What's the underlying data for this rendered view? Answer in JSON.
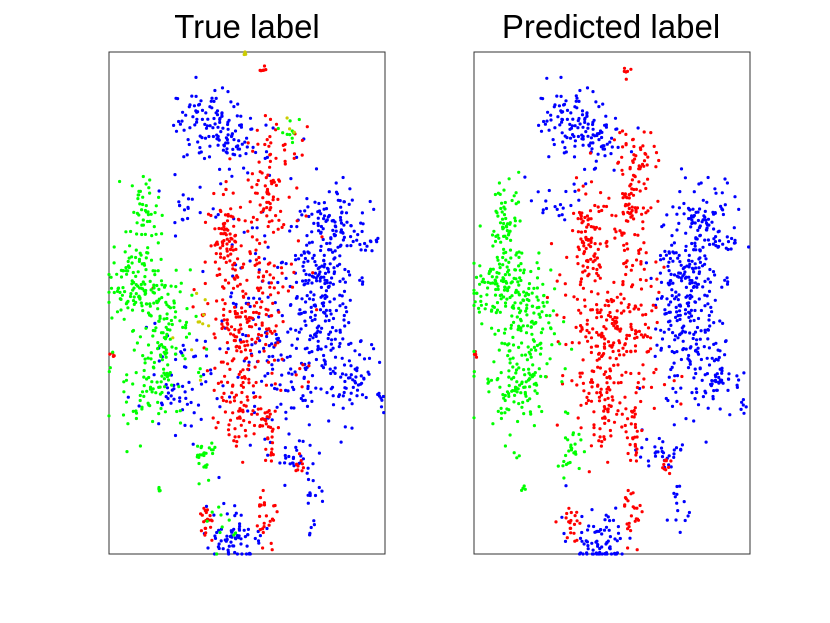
{
  "colors": {
    "class_blue": "#0000ff",
    "class_red": "#ff0000",
    "class_green": "#00ff00",
    "class_yellow": "#cccc00",
    "frame": "#333333",
    "text": "#000000"
  },
  "chart_data": [
    {
      "type": "scatter",
      "title": "True label",
      "xlabel": "",
      "ylabel": "",
      "axes_ticks": false,
      "grid": false,
      "legend": "none",
      "xlim": [
        0,
        1
      ],
      "ylim": [
        0,
        1
      ],
      "series": [
        {
          "color": "#0000ff",
          "clusters": [
            [
              0.35,
              0.86,
              0.07,
              0.03,
              90
            ],
            [
              0.45,
              0.82,
              0.05,
              0.03,
              40
            ],
            [
              0.78,
              0.5,
              0.06,
              0.1,
              260
            ],
            [
              0.82,
              0.67,
              0.05,
              0.03,
              60
            ],
            [
              0.92,
              0.62,
              0.03,
              0.01,
              15
            ],
            [
              0.88,
              0.34,
              0.04,
              0.03,
              50
            ],
            [
              0.45,
              0.03,
              0.05,
              0.03,
              70
            ],
            [
              0.67,
              0.2,
              0.04,
              0.02,
              30
            ],
            [
              0.6,
              0.38,
              0.08,
              0.08,
              80
            ],
            [
              0.25,
              0.35,
              0.06,
              0.06,
              60
            ],
            [
              0.98,
              0.3,
              0.01,
              0.01,
              6
            ],
            [
              0.55,
              0.55,
              0.1,
              0.15,
              80
            ],
            [
              0.75,
              0.1,
              0.02,
              0.03,
              15
            ],
            [
              0.28,
              0.7,
              0.05,
              0.03,
              20
            ]
          ]
        },
        {
          "color": "#ff0000",
          "clusters": [
            [
              0.57,
              0.73,
              0.03,
              0.06,
              70
            ],
            [
              0.42,
              0.64,
              0.03,
              0.05,
              60
            ],
            [
              0.5,
              0.47,
              0.08,
              0.08,
              150
            ],
            [
              0.47,
              0.32,
              0.04,
              0.06,
              70
            ],
            [
              0.58,
              0.25,
              0.02,
              0.03,
              30
            ],
            [
              0.35,
              0.06,
              0.02,
              0.02,
              20
            ],
            [
              0.57,
              0.08,
              0.02,
              0.03,
              25
            ],
            [
              0.7,
              0.18,
              0.01,
              0.01,
              10
            ],
            [
              0.55,
              0.55,
              0.12,
              0.15,
              90
            ],
            [
              0.66,
              0.8,
              0.02,
              0.02,
              10
            ],
            [
              0.55,
              0.96,
              0.01,
              0.01,
              6
            ],
            [
              0.01,
              0.4,
              0.005,
              0.005,
              4
            ]
          ]
        },
        {
          "color": "#00ff00",
          "clusters": [
            [
              0.12,
              0.66,
              0.03,
              0.05,
              60
            ],
            [
              0.08,
              0.53,
              0.05,
              0.03,
              80
            ],
            [
              0.18,
              0.52,
              0.05,
              0.04,
              40
            ],
            [
              0.15,
              0.35,
              0.07,
              0.06,
              110
            ],
            [
              0.35,
              0.2,
              0.02,
              0.02,
              25
            ],
            [
              0.22,
              0.46,
              0.04,
              0.04,
              40
            ],
            [
              0.18,
              0.13,
              0.005,
              0.005,
              4
            ],
            [
              0.66,
              0.84,
              0.02,
              0.02,
              10
            ],
            [
              0.42,
              0.05,
              0.03,
              0.02,
              10
            ]
          ]
        },
        {
          "color": "#cccc00",
          "clusters": [
            [
              0.49,
              0.995,
              0.005,
              0.003,
              4
            ],
            [
              0.3,
              0.44,
              0.04,
              0.04,
              10
            ],
            [
              0.66,
              0.84,
              0.01,
              0.01,
              3
            ]
          ]
        }
      ]
    },
    {
      "type": "scatter",
      "title": "Predicted label",
      "xlabel": "",
      "ylabel": "",
      "axes_ticks": false,
      "grid": false,
      "legend": "none",
      "xlim": [
        0,
        1
      ],
      "ylim": [
        0,
        1
      ],
      "series": [
        {
          "color": "#0000ff",
          "clusters": [
            [
              0.35,
              0.86,
              0.07,
              0.03,
              100
            ],
            [
              0.45,
              0.82,
              0.05,
              0.03,
              40
            ],
            [
              0.78,
              0.5,
              0.06,
              0.1,
              300
            ],
            [
              0.82,
              0.67,
              0.05,
              0.03,
              60
            ],
            [
              0.92,
              0.62,
              0.03,
              0.01,
              15
            ],
            [
              0.88,
              0.34,
              0.04,
              0.03,
              50
            ],
            [
              0.45,
              0.03,
              0.05,
              0.03,
              80
            ],
            [
              0.67,
              0.2,
              0.04,
              0.02,
              30
            ],
            [
              0.98,
              0.3,
              0.01,
              0.01,
              6
            ],
            [
              0.75,
              0.1,
              0.02,
              0.03,
              15
            ],
            [
              0.28,
              0.7,
              0.05,
              0.03,
              20
            ]
          ]
        },
        {
          "color": "#ff0000",
          "clusters": [
            [
              0.57,
              0.73,
              0.03,
              0.06,
              90
            ],
            [
              0.42,
              0.64,
              0.03,
              0.05,
              70
            ],
            [
              0.5,
              0.47,
              0.1,
              0.1,
              260
            ],
            [
              0.47,
              0.32,
              0.04,
              0.06,
              80
            ],
            [
              0.58,
              0.25,
              0.02,
              0.03,
              30
            ],
            [
              0.35,
              0.06,
              0.02,
              0.02,
              20
            ],
            [
              0.57,
              0.08,
              0.02,
              0.03,
              25
            ],
            [
              0.7,
              0.18,
              0.01,
              0.01,
              10
            ],
            [
              0.66,
              0.8,
              0.02,
              0.02,
              10
            ],
            [
              0.55,
              0.96,
              0.01,
              0.01,
              6
            ],
            [
              0.01,
              0.4,
              0.005,
              0.005,
              4
            ]
          ]
        },
        {
          "color": "#00ff00",
          "clusters": [
            [
              0.12,
              0.66,
              0.03,
              0.05,
              70
            ],
            [
              0.08,
              0.53,
              0.05,
              0.03,
              90
            ],
            [
              0.18,
              0.52,
              0.05,
              0.04,
              50
            ],
            [
              0.15,
              0.35,
              0.07,
              0.06,
              140
            ],
            [
              0.35,
              0.2,
              0.02,
              0.02,
              25
            ],
            [
              0.22,
              0.46,
              0.04,
              0.04,
              50
            ],
            [
              0.18,
              0.13,
              0.005,
              0.005,
              4
            ]
          ]
        }
      ]
    }
  ]
}
